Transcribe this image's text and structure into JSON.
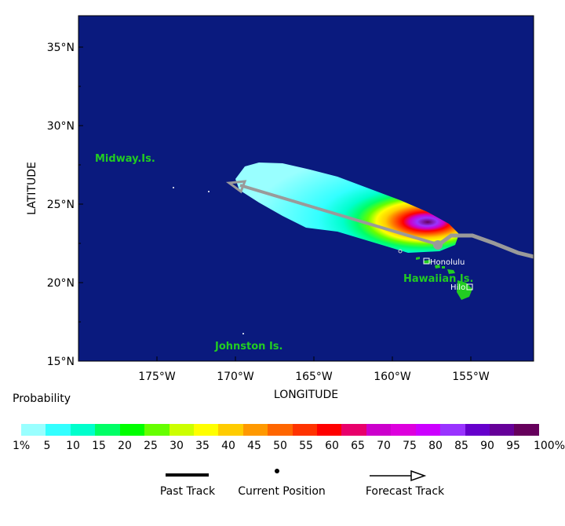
{
  "map": {
    "axis": {
      "xlabel": "LONGITUDE",
      "ylabel": "LATITUDE",
      "lon_ticks": [
        "175°W",
        "170°W",
        "165°W",
        "160°W",
        "155°W"
      ],
      "lat_ticks": [
        "35°N",
        "30°N",
        "25°N",
        "20°N",
        "15°N"
      ],
      "lon_range": [
        -180,
        -151
      ],
      "lat_range": [
        15,
        37
      ]
    },
    "places": {
      "midway": "Midway.Is.",
      "hawaiian": "Hawaiian Is.",
      "johnston": "Johnston Is."
    },
    "cities": {
      "honolulu": "Honolulu",
      "hilo": "Hilo"
    },
    "colors": {
      "ocean": "#0a1a7e",
      "land": "#22cc22",
      "track": "#9a9a9a"
    }
  },
  "legend": {
    "title": "Probability",
    "colors": [
      "#99ffff",
      "#33ffff",
      "#00ffcc",
      "#00ff66",
      "#00ff00",
      "#66ff00",
      "#ccff00",
      "#ffff00",
      "#ffcc00",
      "#ff9900",
      "#ff6600",
      "#ff3300",
      "#ff0000",
      "#e8006b",
      "#cc00cc",
      "#dd00dd",
      "#cc00ff",
      "#9933ff",
      "#6600cc",
      "#660099",
      "#66005c"
    ],
    "tick_labels": [
      "1%",
      "5",
      "10",
      "15",
      "20",
      "25",
      "30",
      "35",
      "40",
      "45",
      "50",
      "55",
      "60",
      "65",
      "70",
      "75",
      "80",
      "85",
      "90",
      "95",
      "100%"
    ]
  },
  "key": {
    "past_track": "Past Track",
    "current_position": "Current Position",
    "forecast_track": "Forecast Track"
  }
}
